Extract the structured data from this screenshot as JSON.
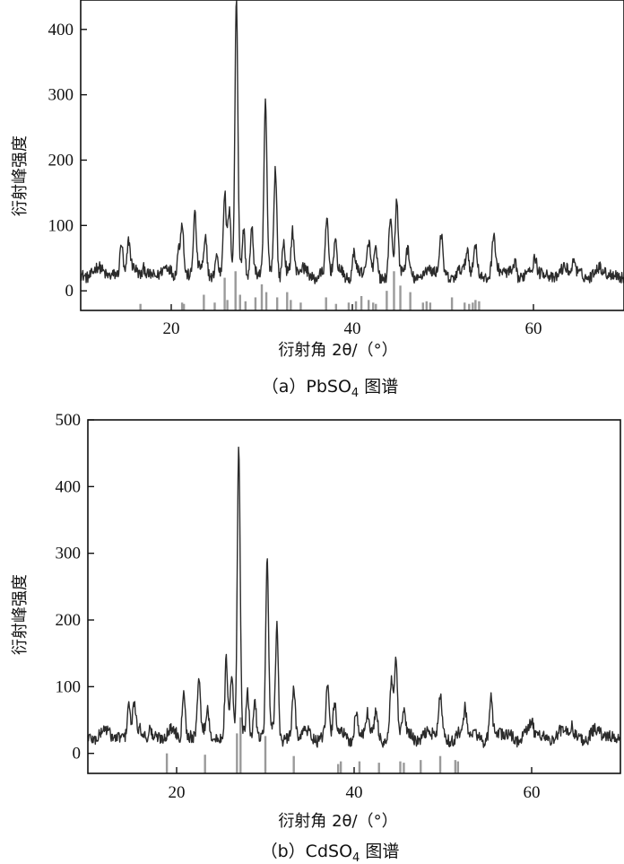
{
  "chart_data": [
    {
      "type": "line",
      "panel": "a",
      "caption_prefix": "（a）",
      "caption_formula": "PbSO",
      "caption_subscript": "4",
      "caption_suffix": " 图谱",
      "xlabel": "衍射角 2θ/（°）",
      "ylabel": "衍射峰强度",
      "xlim": [
        10,
        70
      ],
      "ylim": [
        -30,
        445
      ],
      "xticks": [
        20,
        40,
        60
      ],
      "yticks": [
        0,
        100,
        200,
        300,
        400
      ],
      "grid": false,
      "baseline": 27,
      "peaks": [
        {
          "x": 14.5,
          "y": 78
        },
        {
          "x": 15.3,
          "y": 72
        },
        {
          "x": 17.0,
          "y": 40
        },
        {
          "x": 20.8,
          "y": 68
        },
        {
          "x": 21.2,
          "y": 108
        },
        {
          "x": 22.6,
          "y": 118
        },
        {
          "x": 23.8,
          "y": 76
        },
        {
          "x": 25.0,
          "y": 58
        },
        {
          "x": 25.9,
          "y": 153
        },
        {
          "x": 26.4,
          "y": 122
        },
        {
          "x": 27.2,
          "y": 440
        },
        {
          "x": 28.0,
          "y": 100
        },
        {
          "x": 28.9,
          "y": 96
        },
        {
          "x": 30.4,
          "y": 282
        },
        {
          "x": 31.5,
          "y": 188
        },
        {
          "x": 32.4,
          "y": 80
        },
        {
          "x": 33.4,
          "y": 92
        },
        {
          "x": 37.2,
          "y": 108
        },
        {
          "x": 38.1,
          "y": 70
        },
        {
          "x": 40.2,
          "y": 62
        },
        {
          "x": 41.8,
          "y": 72
        },
        {
          "x": 42.6,
          "y": 60
        },
        {
          "x": 44.2,
          "y": 112
        },
        {
          "x": 44.9,
          "y": 138
        },
        {
          "x": 46.1,
          "y": 60
        },
        {
          "x": 49.8,
          "y": 84
        },
        {
          "x": 52.7,
          "y": 62
        },
        {
          "x": 53.6,
          "y": 70
        },
        {
          "x": 55.6,
          "y": 84
        },
        {
          "x": 58.0,
          "y": 45
        },
        {
          "x": 60.2,
          "y": 48
        },
        {
          "x": 64.5,
          "y": 50
        }
      ],
      "reference_lines": [
        {
          "x": 16.6,
          "y": -20
        },
        {
          "x": 21.2,
          "y": -18
        },
        {
          "x": 21.4,
          "y": -20
        },
        {
          "x": 23.6,
          "y": -6
        },
        {
          "x": 24.8,
          "y": -18
        },
        {
          "x": 25.9,
          "y": 20
        },
        {
          "x": 26.2,
          "y": -14
        },
        {
          "x": 27.1,
          "y": 30
        },
        {
          "x": 27.6,
          "y": -6
        },
        {
          "x": 28.2,
          "y": -16
        },
        {
          "x": 29.3,
          "y": -10
        },
        {
          "x": 30.0,
          "y": 10
        },
        {
          "x": 30.5,
          "y": -2
        },
        {
          "x": 31.7,
          "y": -10
        },
        {
          "x": 32.8,
          "y": -2
        },
        {
          "x": 33.2,
          "y": -14
        },
        {
          "x": 34.3,
          "y": -18
        },
        {
          "x": 37.1,
          "y": -10
        },
        {
          "x": 38.2,
          "y": -20
        },
        {
          "x": 39.6,
          "y": -18
        },
        {
          "x": 40.4,
          "y": -16
        },
        {
          "x": 41.0,
          "y": -8
        },
        {
          "x": 41.8,
          "y": -14
        },
        {
          "x": 42.3,
          "y": -18
        },
        {
          "x": 42.6,
          "y": -20
        },
        {
          "x": 43.8,
          "y": 0
        },
        {
          "x": 44.6,
          "y": 30
        },
        {
          "x": 45.3,
          "y": 8
        },
        {
          "x": 46.4,
          "y": -2
        },
        {
          "x": 47.8,
          "y": -18
        },
        {
          "x": 48.2,
          "y": -16
        },
        {
          "x": 48.6,
          "y": -18
        },
        {
          "x": 51.0,
          "y": -10
        },
        {
          "x": 52.4,
          "y": -18
        },
        {
          "x": 52.9,
          "y": -20
        },
        {
          "x": 53.3,
          "y": -18
        },
        {
          "x": 53.6,
          "y": -14
        },
        {
          "x": 54.0,
          "y": -16
        }
      ]
    },
    {
      "type": "line",
      "panel": "b",
      "caption_prefix": "（b）",
      "caption_formula": "CdSO",
      "caption_subscript": "4",
      "caption_suffix": " 图谱",
      "xlabel": "衍射角 2θ/（°）",
      "ylabel": "衍射峰强度",
      "xlim": [
        10,
        70
      ],
      "ylim": [
        -30,
        500
      ],
      "xticks": [
        20,
        40,
        60
      ],
      "yticks": [
        0,
        100,
        200,
        300,
        400,
        500
      ],
      "grid": false,
      "baseline": 27,
      "peaks": [
        {
          "x": 14.6,
          "y": 82
        },
        {
          "x": 15.2,
          "y": 74
        },
        {
          "x": 17.0,
          "y": 42
        },
        {
          "x": 20.8,
          "y": 104
        },
        {
          "x": 22.5,
          "y": 120
        },
        {
          "x": 23.5,
          "y": 58
        },
        {
          "x": 25.6,
          "y": 142
        },
        {
          "x": 26.2,
          "y": 118
        },
        {
          "x": 27.0,
          "y": 448
        },
        {
          "x": 28.0,
          "y": 96
        },
        {
          "x": 28.8,
          "y": 82
        },
        {
          "x": 30.2,
          "y": 286
        },
        {
          "x": 31.3,
          "y": 190
        },
        {
          "x": 33.2,
          "y": 96
        },
        {
          "x": 37.0,
          "y": 100
        },
        {
          "x": 37.8,
          "y": 74
        },
        {
          "x": 40.2,
          "y": 64
        },
        {
          "x": 41.5,
          "y": 60
        },
        {
          "x": 42.5,
          "y": 60
        },
        {
          "x": 44.2,
          "y": 106
        },
        {
          "x": 44.7,
          "y": 138
        },
        {
          "x": 45.6,
          "y": 62
        },
        {
          "x": 49.7,
          "y": 86
        },
        {
          "x": 52.5,
          "y": 64
        },
        {
          "x": 55.4,
          "y": 80
        },
        {
          "x": 60.0,
          "y": 44
        },
        {
          "x": 64.5,
          "y": 44
        }
      ],
      "reference_lines": [
        {
          "x": 18.9,
          "y": 0
        },
        {
          "x": 23.2,
          "y": -2
        },
        {
          "x": 26.8,
          "y": 30
        },
        {
          "x": 27.2,
          "y": 54
        },
        {
          "x": 30.0,
          "y": 26
        },
        {
          "x": 33.2,
          "y": -4
        },
        {
          "x": 38.2,
          "y": -16
        },
        {
          "x": 38.5,
          "y": -12
        },
        {
          "x": 40.6,
          "y": -12
        },
        {
          "x": 42.8,
          "y": -14
        },
        {
          "x": 45.2,
          "y": -12
        },
        {
          "x": 45.6,
          "y": -14
        },
        {
          "x": 47.5,
          "y": -10
        },
        {
          "x": 49.7,
          "y": -4
        },
        {
          "x": 51.4,
          "y": -10
        },
        {
          "x": 51.7,
          "y": -12
        }
      ]
    }
  ]
}
